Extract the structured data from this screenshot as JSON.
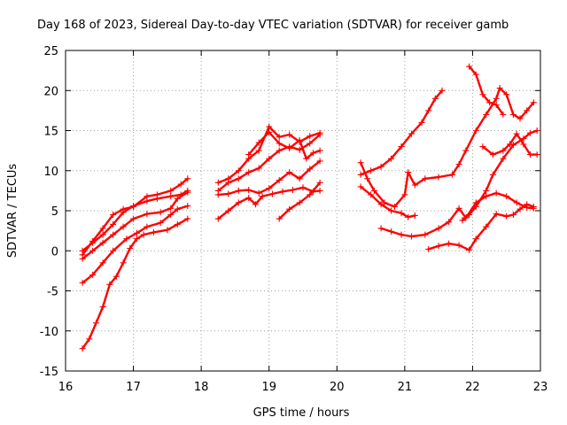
{
  "chart_data": {
    "type": "scatter",
    "title": "Day 168 of 2023, Sidereal Day-to-day VTEC variation (SDTVAR) for receiver gamb",
    "xlabel": "GPS time / hours",
    "ylabel": "SDTVAR / TECUs",
    "xlim": [
      16,
      23
    ],
    "ylim": [
      -15,
      25
    ],
    "xticks": [
      "16",
      "17",
      "18",
      "19",
      "20",
      "21",
      "22",
      "23"
    ],
    "yticks": [
      "25",
      "20",
      "15",
      "10",
      "5",
      "0",
      "-5",
      "-10",
      "-15"
    ],
    "grid": true,
    "marker": "plus",
    "color": "#ff0000",
    "series": [
      {
        "name": "s1",
        "points": [
          [
            16.25,
            -12.2
          ],
          [
            16.35,
            -11
          ],
          [
            16.45,
            -9
          ],
          [
            16.55,
            -7
          ],
          [
            16.65,
            -4.2
          ],
          [
            16.75,
            -3.2
          ],
          [
            16.85,
            -1.5
          ],
          [
            16.95,
            0.3
          ],
          [
            17.05,
            1.5
          ],
          [
            17.15,
            2
          ],
          [
            17.3,
            2.3
          ],
          [
            17.5,
            2.6
          ],
          [
            17.65,
            3.3
          ],
          [
            17.8,
            4
          ]
        ]
      },
      {
        "name": "s2",
        "points": [
          [
            16.25,
            -4
          ],
          [
            16.4,
            -3
          ],
          [
            16.55,
            -1.5
          ],
          [
            16.7,
            0
          ],
          [
            16.9,
            1.5
          ],
          [
            17.05,
            2.2
          ],
          [
            17.2,
            3
          ],
          [
            17.4,
            3.5
          ],
          [
            17.55,
            4.5
          ],
          [
            17.65,
            5.2
          ],
          [
            17.8,
            5.6
          ]
        ]
      },
      {
        "name": "s3",
        "points": [
          [
            16.25,
            -1
          ],
          [
            16.4,
            0
          ],
          [
            16.55,
            1
          ],
          [
            16.7,
            2
          ],
          [
            16.85,
            3
          ],
          [
            17.0,
            4
          ],
          [
            17.2,
            4.6
          ],
          [
            17.4,
            4.8
          ],
          [
            17.55,
            5.3
          ],
          [
            17.65,
            6.5
          ],
          [
            17.8,
            7.3
          ]
        ]
      },
      {
        "name": "s4",
        "points": [
          [
            16.25,
            0
          ],
          [
            16.4,
            1
          ],
          [
            16.55,
            2
          ],
          [
            16.7,
            3.3
          ],
          [
            16.85,
            4.8
          ],
          [
            17.0,
            5.6
          ],
          [
            17.2,
            6.2
          ],
          [
            17.35,
            6.5
          ],
          [
            17.55,
            6.8
          ],
          [
            17.7,
            7
          ],
          [
            17.8,
            7.5
          ]
        ]
      },
      {
        "name": "s5",
        "points": [
          [
            16.25,
            -0.5
          ],
          [
            16.4,
            1.2
          ],
          [
            16.55,
            2.8
          ],
          [
            16.7,
            4.5
          ],
          [
            16.85,
            5.2
          ],
          [
            17.0,
            5.5
          ],
          [
            17.2,
            6.8
          ],
          [
            17.35,
            7
          ],
          [
            17.55,
            7.5
          ],
          [
            17.7,
            8.3
          ],
          [
            17.8,
            9
          ]
        ]
      },
      {
        "name": "s6",
        "points": [
          [
            18.25,
            4
          ],
          [
            18.4,
            5
          ],
          [
            18.55,
            6
          ],
          [
            18.7,
            6.6
          ],
          [
            18.8,
            5.8
          ],
          [
            18.9,
            6.8
          ],
          [
            19.05,
            7.1
          ],
          [
            19.2,
            7.4
          ],
          [
            19.35,
            7.6
          ],
          [
            19.5,
            7.9
          ],
          [
            19.65,
            7.4
          ],
          [
            19.75,
            7.5
          ]
        ]
      },
      {
        "name": "s7",
        "points": [
          [
            19.15,
            4
          ],
          [
            19.3,
            5.2
          ],
          [
            19.45,
            6
          ],
          [
            19.6,
            7
          ],
          [
            19.75,
            8.5
          ]
        ]
      },
      {
        "name": "s8",
        "points": [
          [
            18.25,
            7
          ],
          [
            18.4,
            7.1
          ],
          [
            18.55,
            7.5
          ],
          [
            18.7,
            7.6
          ],
          [
            18.85,
            7.2
          ],
          [
            19.0,
            7.8
          ],
          [
            19.15,
            8.8
          ],
          [
            19.3,
            9.8
          ],
          [
            19.45,
            9
          ],
          [
            19.6,
            10.2
          ],
          [
            19.75,
            11.2
          ]
        ]
      },
      {
        "name": "s9",
        "points": [
          [
            18.25,
            7.5
          ],
          [
            18.4,
            8.5
          ],
          [
            18.55,
            9
          ],
          [
            18.7,
            9.8
          ],
          [
            18.85,
            10.3
          ],
          [
            19.0,
            11.5
          ],
          [
            19.15,
            12.5
          ],
          [
            19.3,
            13
          ],
          [
            19.45,
            12.6
          ],
          [
            19.6,
            13.4
          ],
          [
            19.75,
            14.5
          ]
        ]
      },
      {
        "name": "s10",
        "points": [
          [
            18.25,
            8.5
          ],
          [
            18.4,
            9
          ],
          [
            18.55,
            10
          ],
          [
            18.7,
            11.5
          ],
          [
            18.85,
            12.5
          ],
          [
            19.0,
            15.5
          ],
          [
            19.15,
            14.2
          ],
          [
            19.3,
            14.5
          ],
          [
            19.45,
            13.6
          ],
          [
            19.6,
            14.3
          ],
          [
            19.75,
            14.7
          ]
        ]
      },
      {
        "name": "s11",
        "points": [
          [
            18.7,
            12
          ],
          [
            18.85,
            13.5
          ],
          [
            19.0,
            14.8
          ],
          [
            19.15,
            13.4
          ],
          [
            19.3,
            12.8
          ],
          [
            19.45,
            13.8
          ],
          [
            19.55,
            11.5
          ],
          [
            19.65,
            12.2
          ],
          [
            19.75,
            12.5
          ]
        ]
      },
      {
        "name": "s12",
        "points": [
          [
            20.35,
            8
          ],
          [
            20.5,
            7
          ],
          [
            20.65,
            5.8
          ],
          [
            20.8,
            5
          ],
          [
            20.95,
            4.7
          ],
          [
            21.05,
            4.2
          ],
          [
            21.15,
            4.4
          ]
        ]
      },
      {
        "name": "s13",
        "points": [
          [
            20.35,
            9.5
          ],
          [
            20.5,
            10
          ],
          [
            20.65,
            10.5
          ],
          [
            20.8,
            11.5
          ],
          [
            20.95,
            13
          ],
          [
            21.1,
            14.6
          ],
          [
            21.25,
            16
          ],
          [
            21.35,
            17.5
          ],
          [
            21.45,
            19
          ],
          [
            21.55,
            20
          ]
        ]
      },
      {
        "name": "s14",
        "points": [
          [
            20.35,
            11
          ],
          [
            20.45,
            9
          ],
          [
            20.55,
            7.5
          ],
          [
            20.7,
            6
          ],
          [
            20.85,
            5.5
          ],
          [
            21.0,
            7
          ],
          [
            21.05,
            9.8
          ],
          [
            21.15,
            8.2
          ],
          [
            21.3,
            9
          ],
          [
            21.5,
            9.2
          ],
          [
            21.7,
            9.5
          ],
          [
            21.8,
            10.8
          ],
          [
            21.9,
            12.5
          ],
          [
            22.05,
            15
          ],
          [
            22.2,
            17
          ],
          [
            22.35,
            19
          ],
          [
            22.4,
            20.3
          ],
          [
            22.5,
            19.5
          ],
          [
            22.6,
            17
          ],
          [
            22.7,
            16.5
          ],
          [
            22.8,
            17.5
          ],
          [
            22.9,
            18.5
          ]
        ]
      },
      {
        "name": "s15",
        "points": [
          [
            20.65,
            2.8
          ],
          [
            20.8,
            2.4
          ],
          [
            20.95,
            2
          ],
          [
            21.1,
            1.8
          ],
          [
            21.3,
            2
          ],
          [
            21.5,
            2.8
          ],
          [
            21.65,
            3.6
          ],
          [
            21.8,
            5.3
          ],
          [
            21.9,
            4.1
          ],
          [
            22.05,
            6
          ],
          [
            22.2,
            6.8
          ],
          [
            22.35,
            7.2
          ],
          [
            22.5,
            6.8
          ],
          [
            22.65,
            6
          ],
          [
            22.8,
            5.4
          ],
          [
            22.9,
            5.3
          ]
        ]
      },
      {
        "name": "s16",
        "points": [
          [
            21.35,
            0.2
          ],
          [
            21.5,
            0.6
          ],
          [
            21.65,
            0.9
          ],
          [
            21.8,
            0.7
          ],
          [
            21.95,
            0.1
          ],
          [
            22.05,
            1.5
          ],
          [
            22.2,
            3
          ],
          [
            22.35,
            4.6
          ],
          [
            22.5,
            4.3
          ],
          [
            22.6,
            4.5
          ],
          [
            22.7,
            5.2
          ],
          [
            22.8,
            5.8
          ],
          [
            22.9,
            5.5
          ]
        ]
      },
      {
        "name": "s17",
        "points": [
          [
            21.95,
            23
          ],
          [
            22.05,
            22
          ],
          [
            22.15,
            19.5
          ],
          [
            22.25,
            18.5
          ],
          [
            22.35,
            18.2
          ],
          [
            22.45,
            17
          ]
        ]
      },
      {
        "name": "s18",
        "points": [
          [
            22.15,
            13
          ],
          [
            22.3,
            12
          ],
          [
            22.45,
            12.5
          ],
          [
            22.55,
            13.3
          ],
          [
            22.65,
            14.6
          ],
          [
            22.75,
            13.3
          ],
          [
            22.85,
            12
          ],
          [
            22.95,
            12
          ]
        ]
      },
      {
        "name": "s19",
        "points": [
          [
            21.85,
            3.8
          ],
          [
            21.95,
            4.5
          ],
          [
            22.05,
            5.5
          ],
          [
            22.2,
            7.5
          ],
          [
            22.3,
            9.5
          ],
          [
            22.45,
            11.5
          ],
          [
            22.6,
            13.2
          ],
          [
            22.75,
            14
          ],
          [
            22.85,
            14.7
          ],
          [
            22.95,
            15
          ]
        ]
      }
    ]
  }
}
